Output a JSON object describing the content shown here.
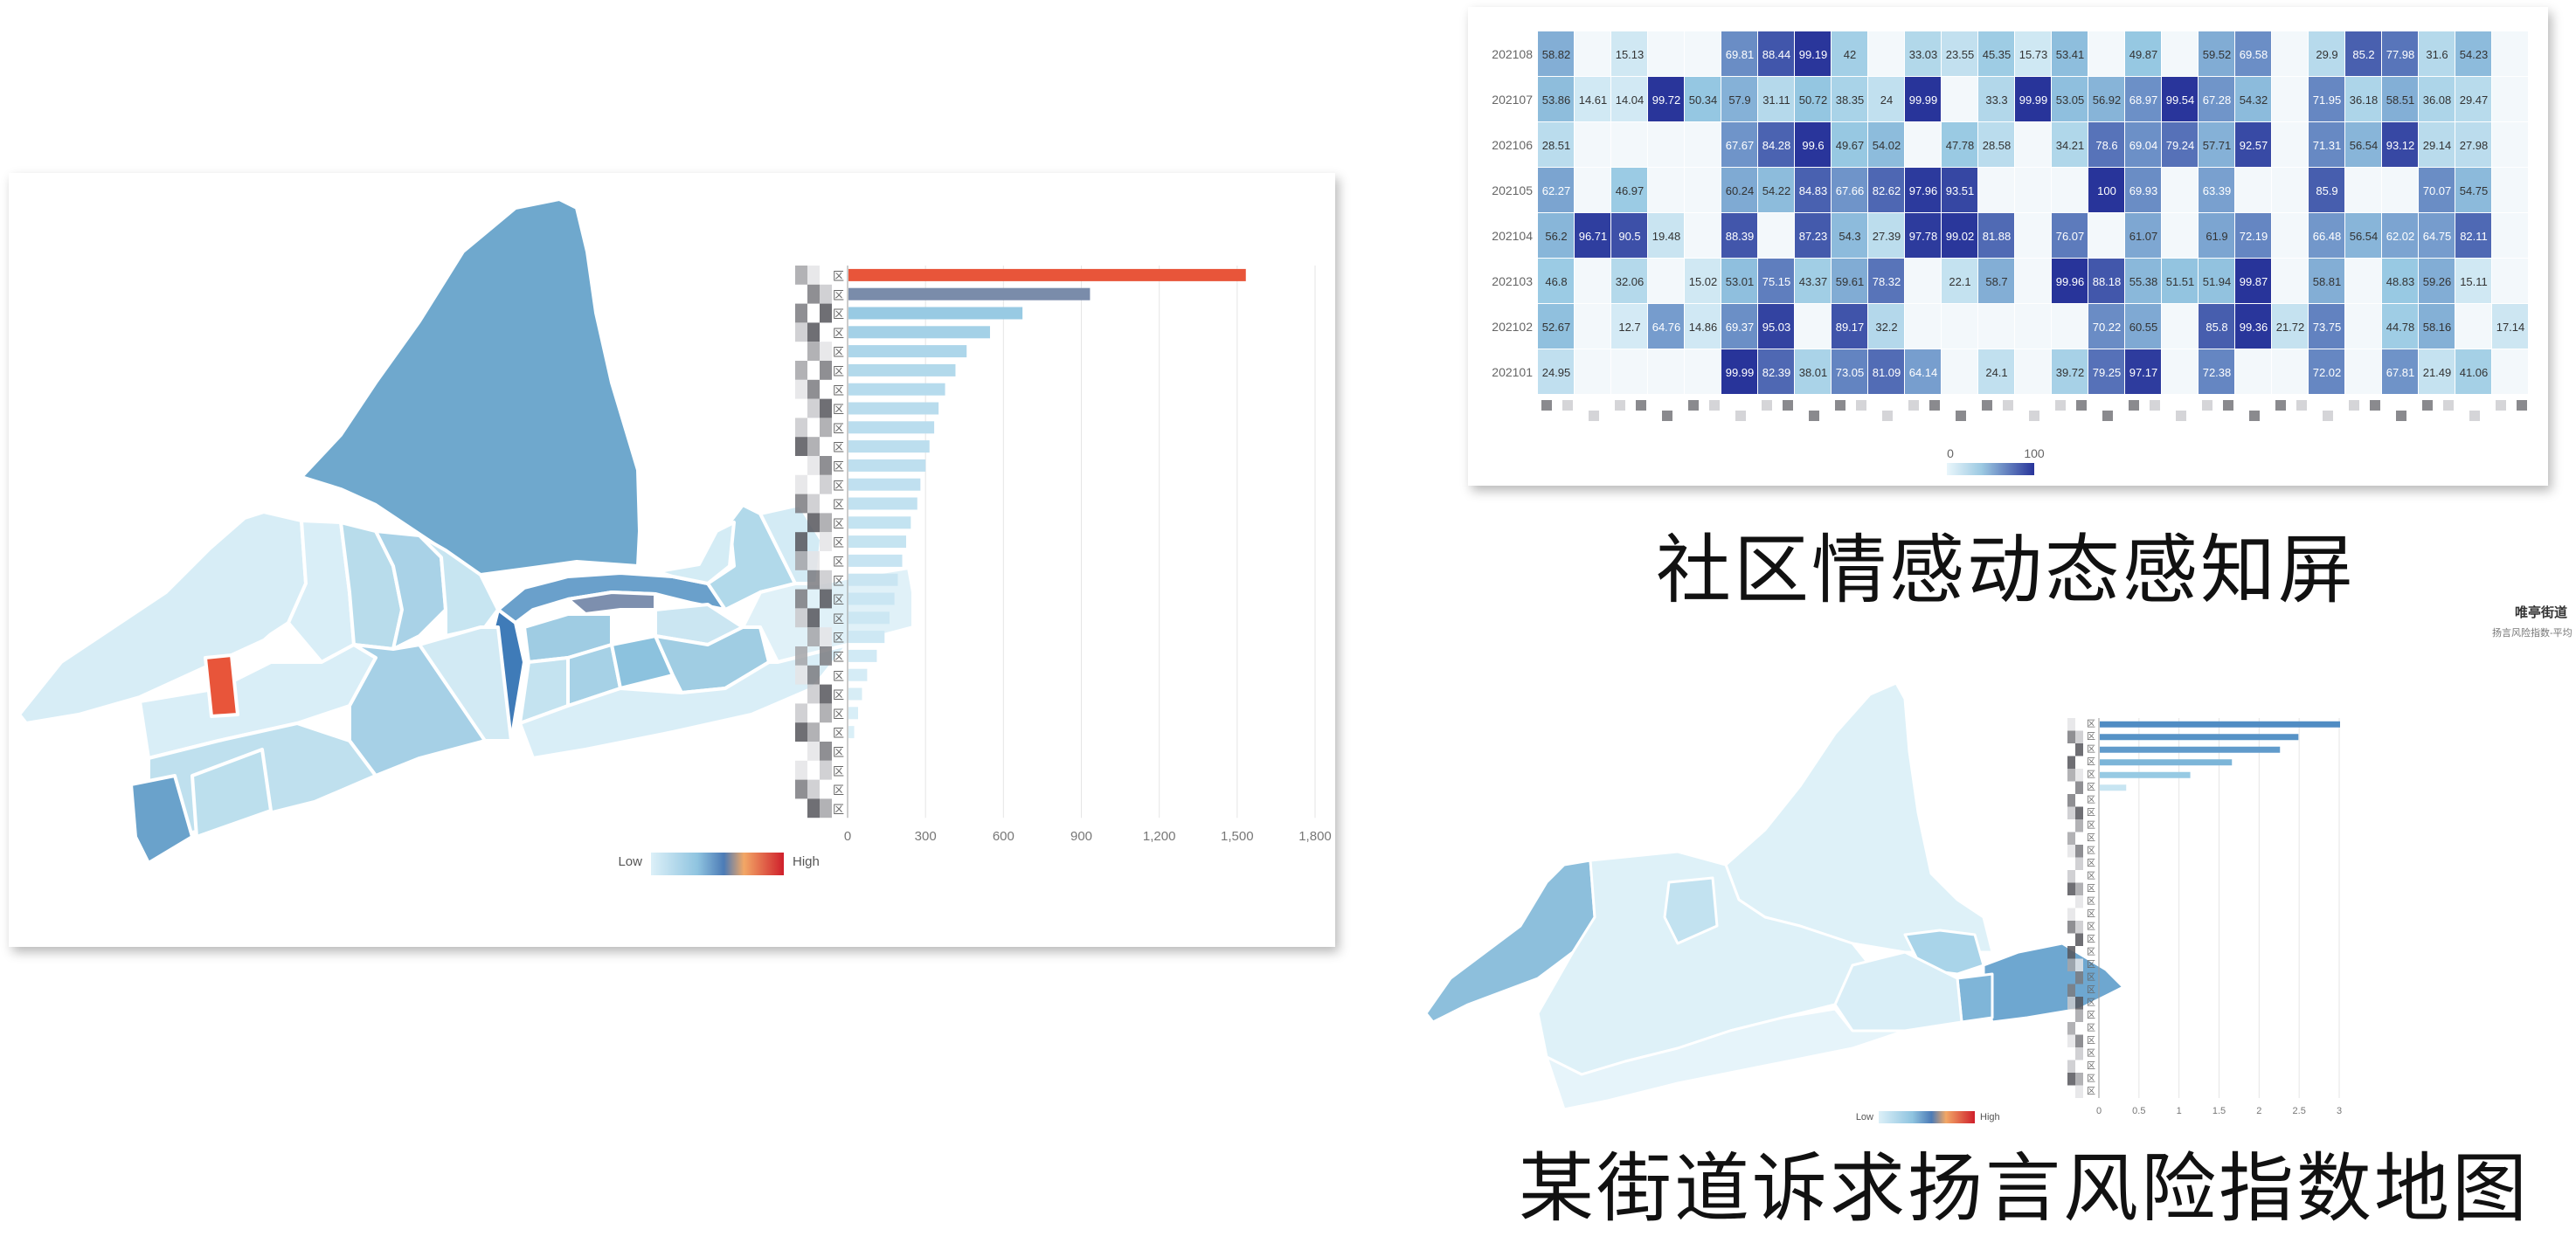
{
  "captions": {
    "heatmap": "社区情感动态感知屏",
    "map2": "某街道诉求扬言风险指数地图"
  },
  "map2_header": {
    "name": "唯亭街道",
    "subtitle": "扬言风险指数-平均"
  },
  "legend": {
    "low": "Low",
    "high": "High"
  },
  "colors": {
    "map_scale": [
      "#d9eef7",
      "#a9d3e8",
      "#6ea5cf",
      "#4f7fb5",
      "#ef9f5f",
      "#d7202a"
    ],
    "highlight_red": "#e8553a",
    "bar_red": "#e8553a",
    "bar_dark": "#7a8caa",
    "heat_low": "#e9f6fb",
    "heat_high": "#28349a"
  },
  "chart_data": [
    {
      "type": "bar",
      "orientation": "horizontal",
      "title": "",
      "categories": [
        "区",
        "区",
        "区",
        "区",
        "区",
        "区",
        "区",
        "区",
        "区",
        "区",
        "区",
        "区",
        "区",
        "区",
        "区",
        "区",
        "区",
        "区",
        "区",
        "区",
        "区",
        "区",
        "区",
        "区",
        "区",
        "区",
        "区",
        "区",
        "区"
      ],
      "values": [
        1530,
        930,
        670,
        545,
        455,
        412,
        372,
        347,
        330,
        312,
        297,
        277,
        265,
        240,
        222,
        207,
        190,
        177,
        158,
        139,
        109,
        72,
        52,
        37,
        22,
        0,
        0,
        0,
        0
      ],
      "xlim": [
        0,
        1800
      ],
      "xticks": [
        "0",
        "300",
        "600",
        "900",
        "1,200",
        "1,500",
        "1,800"
      ],
      "grid": true
    },
    {
      "type": "heatmap",
      "title": "",
      "y_categories": [
        "202108",
        "202107",
        "202106",
        "202105",
        "202104",
        "202103",
        "202102",
        "202101"
      ],
      "columns": 27,
      "range": [
        0,
        100
      ],
      "scale_labels": [
        "0",
        "100"
      ],
      "rows": [
        [
          58.82,
          null,
          15.13,
          null,
          null,
          69.81,
          88.44,
          99.19,
          42,
          null,
          33.03,
          23.55,
          45.35,
          15.73,
          53.41,
          null,
          49.87,
          null,
          59.52,
          69.58,
          null,
          29.9,
          85.2,
          77.98,
          31.6,
          54.23,
          null
        ],
        [
          53.86,
          14.61,
          14.04,
          99.72,
          50.34,
          57.9,
          31.11,
          50.72,
          38.35,
          24,
          99.99,
          null,
          33.3,
          99.99,
          53.05,
          56.92,
          68.97,
          99.54,
          67.28,
          54.32,
          null,
          71.95,
          36.18,
          58.51,
          36.08,
          29.47,
          null
        ],
        [
          28.51,
          null,
          null,
          null,
          null,
          67.67,
          84.28,
          99.6,
          49.67,
          54.02,
          null,
          47.78,
          28.58,
          null,
          34.21,
          78.6,
          69.04,
          79.24,
          57.71,
          92.57,
          null,
          71.31,
          56.54,
          93.12,
          29.14,
          27.98,
          null
        ],
        [
          62.27,
          null,
          46.97,
          null,
          null,
          60.24,
          54.22,
          84.83,
          67.66,
          82.62,
          97.96,
          93.51,
          null,
          null,
          null,
          100,
          69.93,
          null,
          63.39,
          null,
          null,
          85.9,
          null,
          null,
          70.07,
          54.75,
          null
        ],
        [
          56.2,
          96.71,
          90.5,
          19.48,
          null,
          88.39,
          null,
          87.23,
          54.3,
          27.39,
          97.78,
          99.02,
          81.88,
          null,
          76.07,
          null,
          61.07,
          null,
          61.9,
          72.19,
          null,
          66.48,
          56.54,
          62.02,
          64.75,
          82.11,
          null
        ],
        [
          46.8,
          null,
          32.06,
          null,
          15.02,
          53.01,
          75.15,
          43.37,
          59.61,
          78.32,
          null,
          22.1,
          58.7,
          null,
          99.96,
          88.18,
          55.38,
          51.51,
          51.94,
          99.87,
          null,
          58.81,
          null,
          48.83,
          59.26,
          15.11,
          null
        ],
        [
          52.67,
          null,
          12.7,
          64.76,
          14.86,
          69.37,
          95.03,
          null,
          89.17,
          32.2,
          null,
          null,
          null,
          null,
          null,
          70.22,
          60.55,
          null,
          85.8,
          99.36,
          21.72,
          73.75,
          null,
          44.78,
          58.16,
          null,
          17.14
        ],
        [
          24.95,
          null,
          null,
          null,
          null,
          99.99,
          82.39,
          38.01,
          73.05,
          81.09,
          64.14,
          null,
          24.1,
          null,
          39.72,
          79.25,
          97.17,
          null,
          72.38,
          null,
          null,
          72.02,
          null,
          67.81,
          21.49,
          41.06,
          null
        ]
      ]
    },
    {
      "type": "bar",
      "orientation": "horizontal",
      "title": "",
      "categories": [
        "区",
        "区",
        "区",
        "区",
        "区",
        "区",
        "区",
        "区",
        "区",
        "区",
        "区",
        "区",
        "区",
        "区",
        "区",
        "区",
        "区",
        "区",
        "区",
        "区",
        "区",
        "区",
        "区",
        "区",
        "区",
        "区",
        "区",
        "区",
        "区",
        "区"
      ],
      "values": [
        3.0,
        2.48,
        2.25,
        1.65,
        1.13,
        0.33,
        0,
        0,
        0,
        0,
        0,
        0,
        0,
        0,
        0,
        0,
        0,
        0,
        0,
        0,
        0,
        0,
        0,
        0,
        0,
        0,
        0,
        0,
        0,
        0
      ],
      "xlim": [
        0,
        3
      ],
      "xticks": [
        "0",
        "0.5",
        "1",
        "1.5",
        "2",
        "2.5",
        "3"
      ],
      "grid": true
    }
  ]
}
